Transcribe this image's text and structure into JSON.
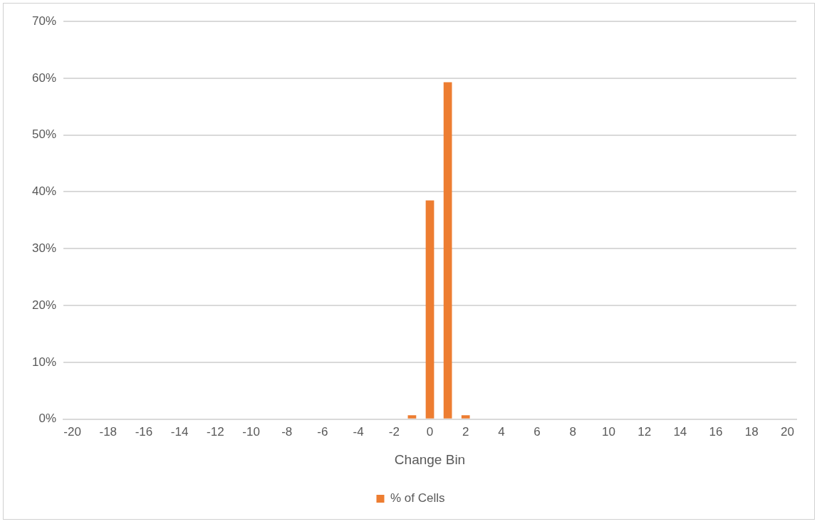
{
  "chart_data": {
    "type": "bar",
    "xlabel": "Change Bin",
    "categories": [
      "-20",
      null,
      "-18",
      null,
      "-16",
      null,
      "-14",
      null,
      "-12",
      null,
      "-10",
      null,
      "-8",
      null,
      "-6",
      null,
      "-4",
      null,
      "-2",
      null,
      "0",
      null,
      "2",
      null,
      "4",
      null,
      "6",
      null,
      "8",
      null,
      "10",
      null,
      "12",
      null,
      "14",
      null,
      "16",
      null,
      "18",
      null,
      "20"
    ],
    "series": [
      {
        "name": "% of Cells",
        "color": "#ed7d31",
        "values": [
          0,
          0,
          0,
          0,
          0,
          0,
          0,
          0,
          0,
          0,
          0,
          0,
          0,
          0,
          0,
          0,
          0,
          0,
          0,
          0.7,
          38.5,
          59.3,
          0.7,
          0,
          0,
          0,
          0,
          0,
          0,
          0,
          0,
          0,
          0,
          0,
          0,
          0,
          0,
          0,
          0,
          0,
          0
        ]
      }
    ],
    "ylim": [
      0,
      70
    ],
    "yticks": [
      {
        "value": 0,
        "label": "0%"
      },
      {
        "value": 10,
        "label": "10%"
      },
      {
        "value": 20,
        "label": "20%"
      },
      {
        "value": 30,
        "label": "30%"
      },
      {
        "value": 40,
        "label": "40%"
      },
      {
        "value": 50,
        "label": "50%"
      },
      {
        "value": 60,
        "label": "60%"
      },
      {
        "value": 70,
        "label": "70%"
      }
    ],
    "grid": "y",
    "legend": "bottom"
  }
}
